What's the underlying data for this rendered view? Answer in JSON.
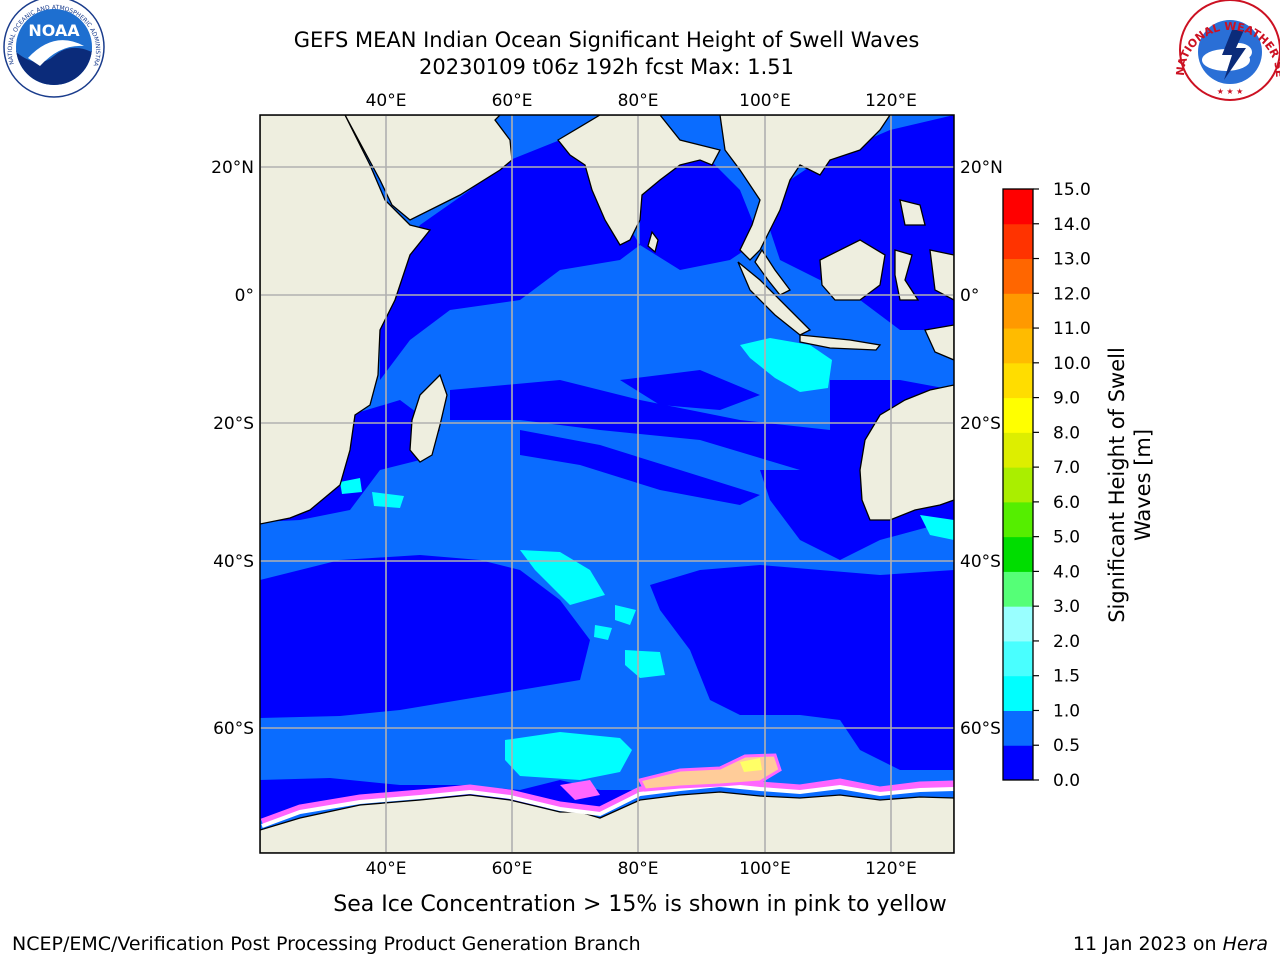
{
  "header": {
    "title_line1": "GEFS MEAN Indian Ocean Significant Height of Swell Waves",
    "title_line2": "20230109 t06z 192h fcst   Max: 1.51"
  },
  "logos": {
    "left": "NOAA",
    "left_ring": "NATIONAL OCEANIC AND ATMOSPHERIC ADMINISTRATION · U.S. DEPARTMENT OF COMMERCE",
    "right_ring": "NATIONAL WEATHER SERVICE"
  },
  "map": {
    "lon_labels": [
      "40°E",
      "60°E",
      "80°E",
      "100°E",
      "120°E"
    ],
    "lat_labels": [
      "20°N",
      "0°",
      "20°S",
      "40°S",
      "60°S"
    ],
    "colors": {
      "ocean_main": "#0000ff",
      "ocean_mid": "#0a6cff",
      "ocean_light": "#00ffff",
      "land": "#eeeedf",
      "grid": "#b0b0b0",
      "ice_pink": "#ff66ff",
      "ice_yellow": "#ffff66"
    }
  },
  "colorbar": {
    "label_line1": "Significant Height of Swell",
    "label_line2": "Waves [m]",
    "ticks": [
      "0.0",
      "0.5",
      "1.0",
      "1.5",
      "2.0",
      "3.0",
      "4.0",
      "5.0",
      "6.0",
      "7.0",
      "8.0",
      "9.0",
      "10.0",
      "11.0",
      "12.0",
      "13.0",
      "14.0",
      "15.0"
    ],
    "colors": [
      "#0000ff",
      "#0a6cff",
      "#00ffff",
      "#49ffff",
      "#99ffff",
      "#55ff77",
      "#00dd00",
      "#55ee00",
      "#aaee00",
      "#ddee00",
      "#ffff00",
      "#ffdd00",
      "#ffbb00",
      "#ff9900",
      "#ff6600",
      "#ff3300",
      "#ff0000"
    ]
  },
  "note": "Sea Ice Concentration > 15% is shown in pink to yellow",
  "footer": {
    "left": "NCEP/EMC/Verification Post Processing Product Generation Branch",
    "right_date": "11 Jan 2023 on ",
    "right_machine": "Hera"
  }
}
